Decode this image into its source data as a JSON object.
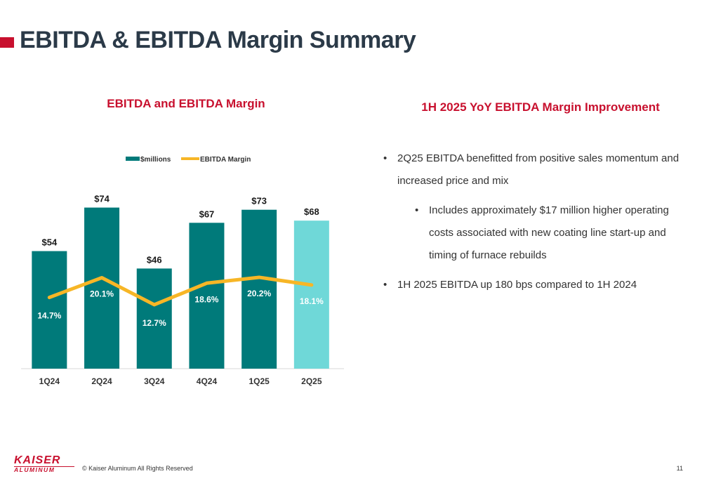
{
  "slide": {
    "title": "EBITDA & EBITDA Margin Summary",
    "chart_heading": "EBITDA and EBITDA Margin",
    "right_heading": "1H 2025 YoY EBITDA Margin Improvement",
    "bullets": [
      "2Q25 EBITDA benefitted from positive sales momentum and increased price and mix",
      "Includes approximately $17 million higher operating costs associated with new coating line start-up and timing of furnace rebuilds",
      "1H 2025 EBITDA up 180 bps compared to 1H 2024"
    ],
    "logo_top": "KAISER",
    "logo_bottom": "ALUMINUM",
    "copyright": "© Kaiser Aluminum All Rights Reserved",
    "page_number": "11"
  },
  "colors": {
    "accent": "#c8102e",
    "title": "#2b3a48",
    "bar": "#007a7a",
    "bar_highlight": "#6fd8d8",
    "line": "#f7b626"
  },
  "chart_data": {
    "type": "bar",
    "title": "EBITDA and EBITDA Margin",
    "categories": [
      "1Q24",
      "2Q24",
      "3Q24",
      "4Q24",
      "1Q25",
      "2Q25"
    ],
    "series": [
      {
        "name": "$millions",
        "type": "bar",
        "values": [
          54,
          74,
          46,
          67,
          73,
          68
        ],
        "labels": [
          "$54",
          "$74",
          "$46",
          "$67",
          "$73",
          "$68"
        ]
      },
      {
        "name": "EBITDA Margin",
        "type": "line",
        "values": [
          14.7,
          20.1,
          12.7,
          18.6,
          20.2,
          18.1
        ],
        "labels": [
          "14.7%",
          "20.1%",
          "12.7%",
          "18.6%",
          "20.2%",
          "18.1%"
        ]
      }
    ],
    "highlight_category": "2Q25",
    "legend": "top-center",
    "grid": false
  }
}
